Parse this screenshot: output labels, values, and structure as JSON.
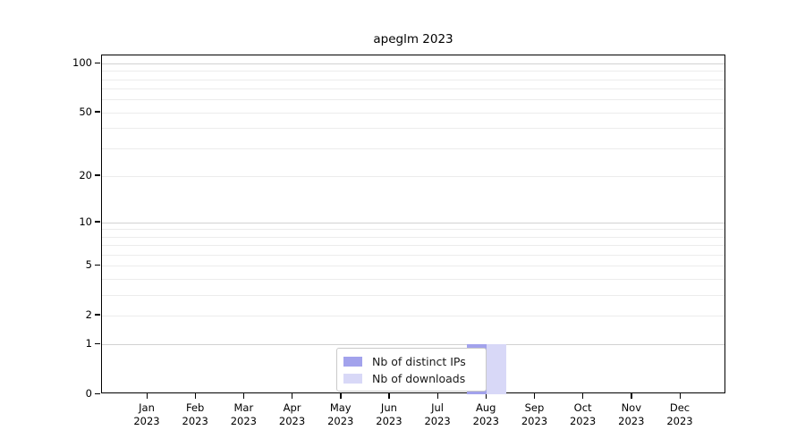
{
  "title": "apeglm 2023",
  "legend": {
    "items": [
      {
        "label": "Nb of distinct IPs",
        "color": "#a2a2ec"
      },
      {
        "label": "Nb of downloads",
        "color": "#d8d8f7"
      }
    ],
    "position": "bottom-center"
  },
  "chart_data": {
    "type": "bar",
    "title": "apeglm 2023",
    "categories": [
      "Jan 2023",
      "Feb 2023",
      "Mar 2023",
      "Apr 2023",
      "May 2023",
      "Jun 2023",
      "Jul 2023",
      "Aug 2023",
      "Sep 2023",
      "Oct 2023",
      "Nov 2023",
      "Dec 2023"
    ],
    "series": [
      {
        "name": "Nb of distinct IPs",
        "color": "#a2a2ec",
        "values": [
          0,
          0,
          0,
          0,
          0,
          0,
          0,
          1,
          0,
          0,
          0,
          0
        ]
      },
      {
        "name": "Nb of downloads",
        "color": "#d8d8f7",
        "values": [
          0,
          0,
          0,
          0,
          0,
          0,
          0,
          1,
          0,
          0,
          0,
          0
        ]
      }
    ],
    "xlabel": "",
    "ylabel": "",
    "yscale": "log1p",
    "ylim": [
      0,
      112
    ],
    "y_ticks": [
      0,
      1,
      2,
      5,
      10,
      20,
      50,
      100
    ],
    "y_major_gridlines": [
      1,
      10,
      100
    ],
    "y_minor_gridlines": [
      2,
      3,
      4,
      5,
      6,
      7,
      8,
      9,
      20,
      30,
      40,
      50,
      60,
      70,
      80,
      90
    ],
    "grid": true,
    "legend_position": "bottom-center"
  }
}
